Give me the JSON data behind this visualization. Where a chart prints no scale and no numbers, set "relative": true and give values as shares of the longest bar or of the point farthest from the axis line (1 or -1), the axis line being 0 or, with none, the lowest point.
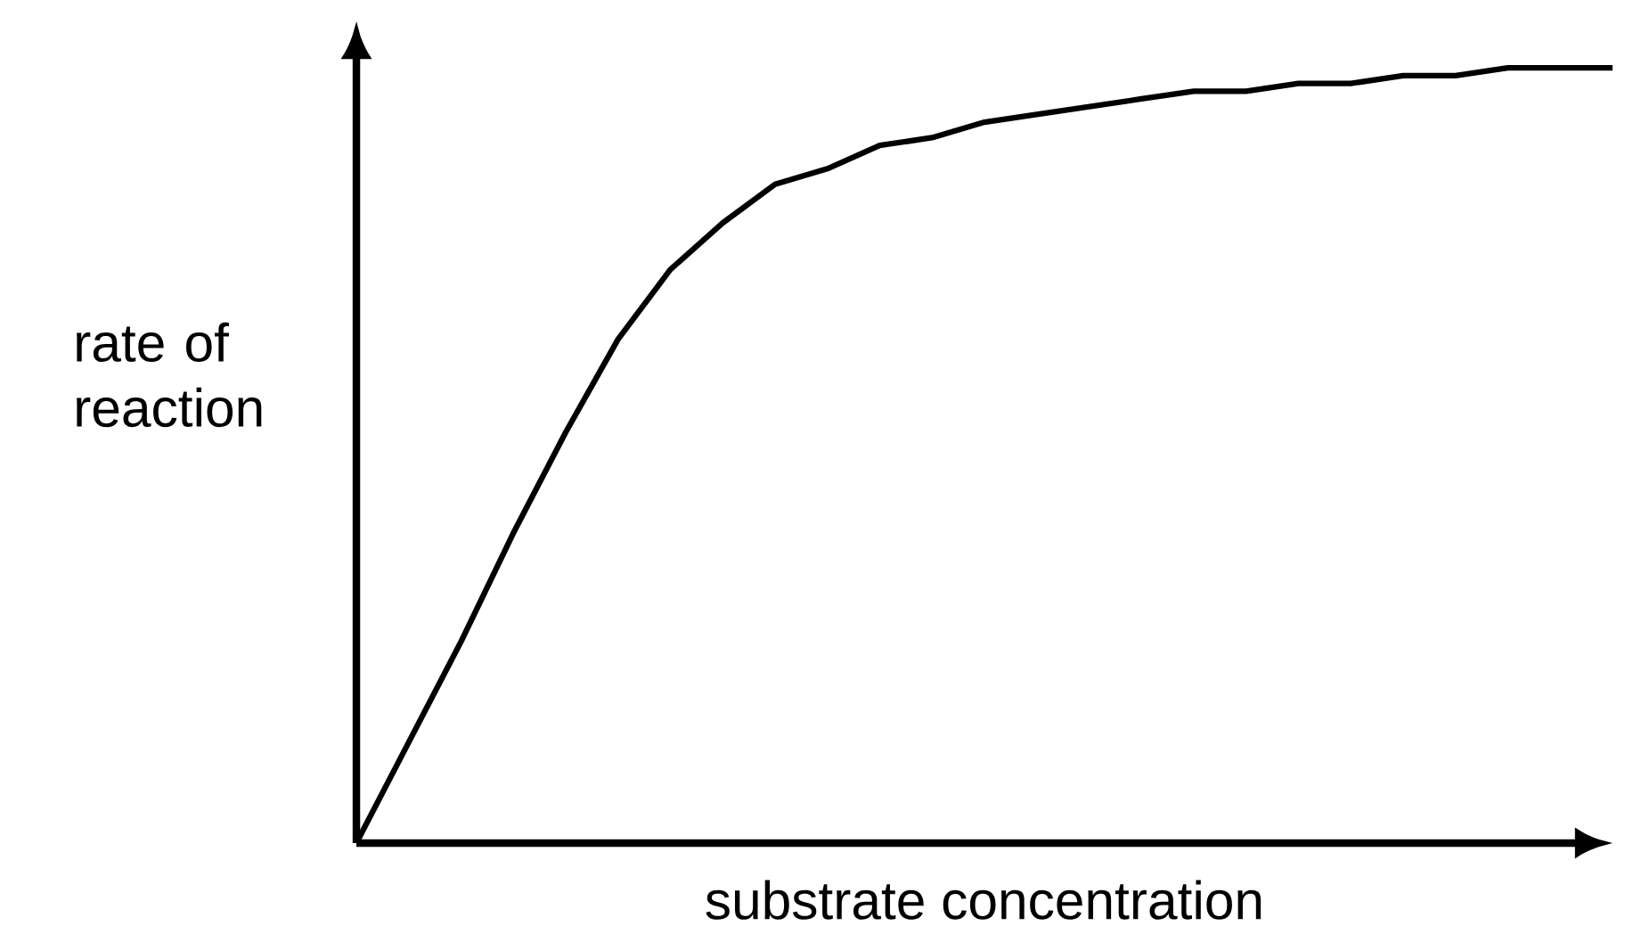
{
  "chart_data": {
    "type": "line",
    "xlabel": "substrate concentration",
    "ylabel": "rate of reaction",
    "relative": true,
    "categories": [
      null,
      null,
      null,
      null,
      null,
      null,
      null,
      null,
      null,
      null,
      null,
      null,
      null,
      null,
      null,
      null,
      null,
      null,
      null,
      null,
      null,
      null,
      null,
      null,
      null
    ],
    "values": [
      0,
      0.13,
      0.26,
      0.4,
      0.53,
      0.65,
      0.74,
      0.8,
      0.85,
      0.87,
      0.9,
      0.91,
      0.93,
      0.94,
      0.95,
      0.96,
      0.97,
      0.97,
      0.98,
      0.98,
      0.99,
      0.99,
      1.0,
      1.0,
      1.0
    ],
    "color": "#000000"
  }
}
